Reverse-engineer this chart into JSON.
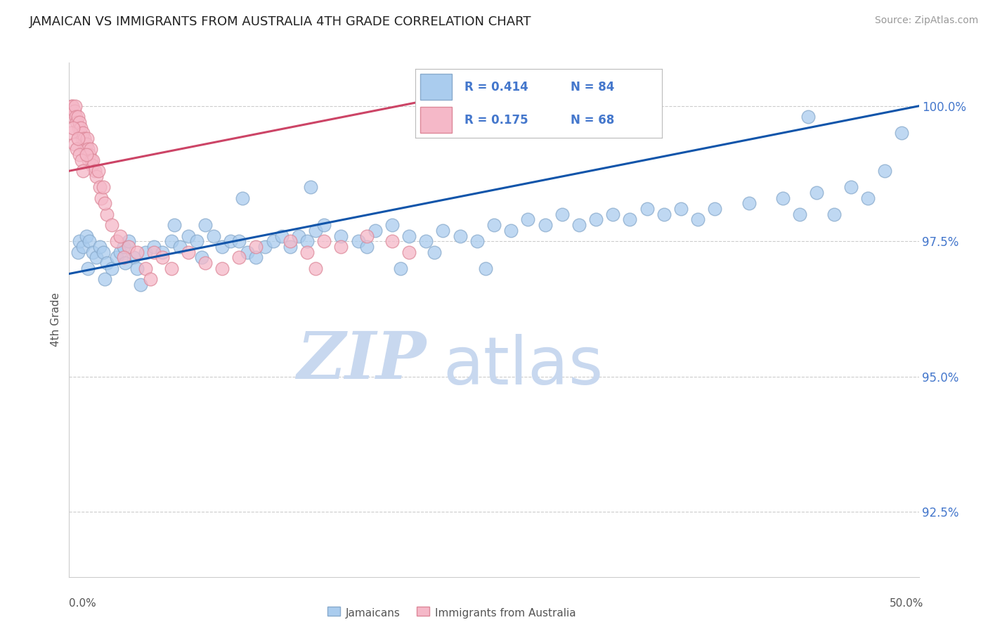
{
  "title": "JAMAICAN VS IMMIGRANTS FROM AUSTRALIA 4TH GRADE CORRELATION CHART",
  "source": "Source: ZipAtlas.com",
  "ylabel": "4th Grade",
  "xmin": 0.0,
  "xmax": 50.0,
  "ymin": 91.3,
  "ymax": 100.8,
  "yticks": [
    92.5,
    95.0,
    97.5,
    100.0
  ],
  "ytick_labels": [
    "92.5%",
    "95.0%",
    "97.5%",
    "100.0%"
  ],
  "legend_r_blue": "R = 0.414",
  "legend_n_blue": "N = 84",
  "legend_r_pink": "R = 0.175",
  "legend_n_pink": "N = 68",
  "legend_label_blue": "Jamaicans",
  "legend_label_pink": "Immigrants from Australia",
  "blue_color": "#aaccee",
  "blue_edge_color": "#88aacc",
  "blue_line_color": "#1155aa",
  "pink_color": "#f5b8c8",
  "pink_edge_color": "#dd8899",
  "pink_line_color": "#cc4466",
  "blue_scatter_x": [
    0.5,
    0.6,
    0.8,
    1.0,
    1.2,
    1.4,
    1.6,
    1.8,
    2.0,
    2.2,
    2.5,
    2.8,
    3.0,
    3.2,
    3.5,
    3.8,
    4.0,
    4.5,
    5.0,
    5.5,
    6.0,
    6.5,
    7.0,
    7.5,
    8.0,
    8.5,
    9.0,
    9.5,
    10.0,
    10.5,
    11.0,
    11.5,
    12.0,
    12.5,
    13.0,
    13.5,
    14.0,
    14.5,
    15.0,
    16.0,
    17.0,
    18.0,
    19.0,
    20.0,
    21.0,
    22.0,
    23.0,
    24.0,
    25.0,
    26.0,
    27.0,
    28.0,
    29.0,
    30.0,
    31.0,
    32.0,
    33.0,
    35.0,
    36.0,
    37.0,
    38.0,
    40.0,
    42.0,
    43.0,
    44.0,
    45.0,
    46.0,
    47.0,
    48.0,
    49.0,
    1.1,
    2.1,
    3.3,
    4.2,
    6.2,
    7.8,
    10.2,
    14.2,
    17.5,
    19.5,
    21.5,
    24.5,
    34.0,
    43.5
  ],
  "blue_scatter_y": [
    97.3,
    97.5,
    97.4,
    97.6,
    97.5,
    97.3,
    97.2,
    97.4,
    97.3,
    97.1,
    97.0,
    97.2,
    97.3,
    97.4,
    97.5,
    97.2,
    97.0,
    97.3,
    97.4,
    97.3,
    97.5,
    97.4,
    97.6,
    97.5,
    97.8,
    97.6,
    97.4,
    97.5,
    97.5,
    97.3,
    97.2,
    97.4,
    97.5,
    97.6,
    97.4,
    97.6,
    97.5,
    97.7,
    97.8,
    97.6,
    97.5,
    97.7,
    97.8,
    97.6,
    97.5,
    97.7,
    97.6,
    97.5,
    97.8,
    97.7,
    97.9,
    97.8,
    98.0,
    97.8,
    97.9,
    98.0,
    97.9,
    98.0,
    98.1,
    97.9,
    98.1,
    98.2,
    98.3,
    98.0,
    98.4,
    98.0,
    98.5,
    98.3,
    98.8,
    99.5,
    97.0,
    96.8,
    97.1,
    96.7,
    97.8,
    97.2,
    98.3,
    98.5,
    97.4,
    97.0,
    97.3,
    97.0,
    98.1,
    99.8
  ],
  "pink_scatter_x": [
    0.1,
    0.15,
    0.2,
    0.25,
    0.3,
    0.35,
    0.4,
    0.45,
    0.5,
    0.55,
    0.6,
    0.65,
    0.7,
    0.75,
    0.8,
    0.85,
    0.9,
    0.95,
    1.0,
    1.05,
    1.1,
    1.15,
    1.2,
    1.25,
    1.3,
    1.35,
    1.4,
    1.5,
    1.6,
    1.7,
    1.8,
    1.9,
    2.0,
    2.2,
    2.5,
    2.8,
    3.0,
    3.5,
    4.0,
    4.5,
    5.0,
    5.5,
    6.0,
    7.0,
    8.0,
    9.0,
    10.0,
    11.0,
    13.0,
    14.0,
    15.0,
    16.0,
    17.5,
    19.0,
    0.12,
    0.22,
    0.32,
    0.42,
    0.52,
    0.62,
    0.72,
    0.82,
    1.02,
    2.1,
    3.2,
    4.8,
    14.5,
    20.0
  ],
  "pink_scatter_y": [
    99.9,
    100.0,
    100.0,
    99.8,
    99.9,
    100.0,
    99.8,
    99.7,
    99.8,
    99.6,
    99.7,
    99.5,
    99.6,
    99.4,
    99.5,
    99.3,
    99.4,
    99.2,
    99.3,
    99.4,
    99.2,
    99.0,
    99.1,
    99.2,
    99.0,
    98.9,
    99.0,
    98.8,
    98.7,
    98.8,
    98.5,
    98.3,
    98.5,
    98.0,
    97.8,
    97.5,
    97.6,
    97.4,
    97.3,
    97.0,
    97.3,
    97.2,
    97.0,
    97.3,
    97.1,
    97.0,
    97.2,
    97.4,
    97.5,
    97.3,
    97.5,
    97.4,
    97.6,
    97.5,
    99.5,
    99.6,
    99.3,
    99.2,
    99.4,
    99.1,
    99.0,
    98.8,
    99.1,
    98.2,
    97.2,
    96.8,
    97.0,
    97.3
  ],
  "blue_line_x0": 0.0,
  "blue_line_x1": 50.0,
  "blue_line_y0": 96.9,
  "blue_line_y1": 100.0,
  "pink_line_x0": 0.0,
  "pink_line_x1": 21.0,
  "pink_line_y0": 98.8,
  "pink_line_y1": 100.1,
  "background_color": "#ffffff",
  "grid_color": "#cccccc",
  "title_color": "#222222",
  "axis_label_color": "#555555",
  "right_label_color": "#4477cc",
  "watermark_zip_color": "#c8d8ef",
  "watermark_atlas_color": "#c8d8ef"
}
